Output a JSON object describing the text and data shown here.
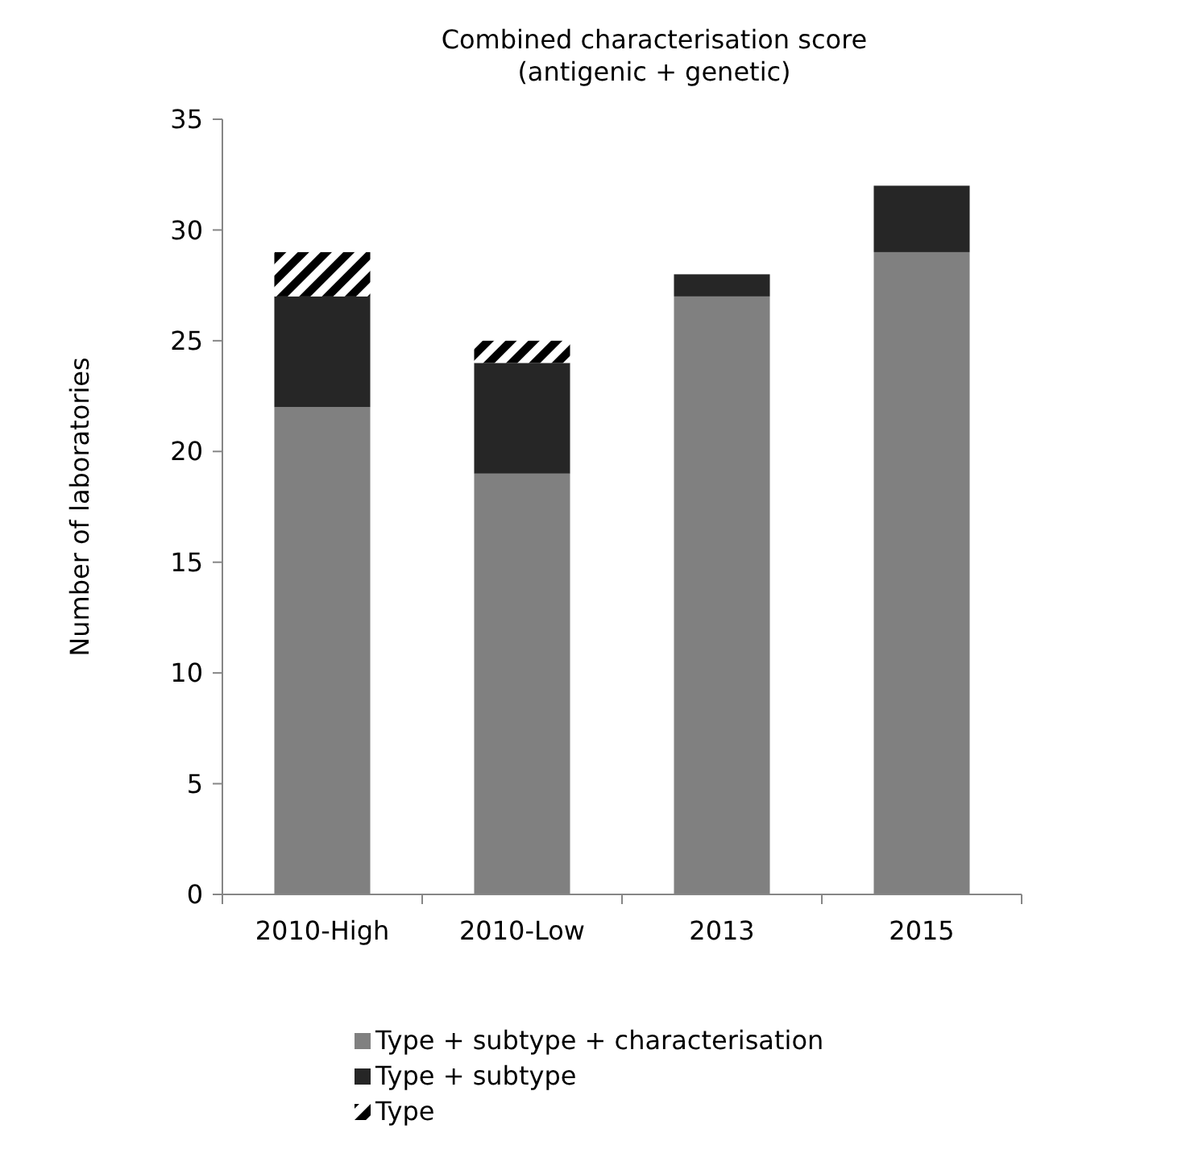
{
  "chart_data": {
    "type": "bar",
    "title": "Combined characterisation score\n(antigenic + genetic)",
    "ylabel": "Number of laboratories",
    "categories": [
      "2010-High",
      "2010-Low",
      "2013",
      "2015"
    ],
    "stacked": true,
    "series": [
      {
        "name": "Type + subtype + characterisation",
        "color": "#808080",
        "values": [
          22,
          19,
          27,
          29
        ]
      },
      {
        "name": "Type + subtype",
        "color": "#262626",
        "values": [
          5,
          5,
          1,
          3
        ]
      },
      {
        "name": "Type",
        "color": "#000000",
        "values": [
          2,
          1,
          0,
          0
        ]
      }
    ],
    "ylim": [
      0,
      35
    ],
    "yticks": [
      0,
      5,
      10,
      15,
      20,
      25,
      30,
      35
    ],
    "grid": false,
    "legend": "bottom"
  }
}
